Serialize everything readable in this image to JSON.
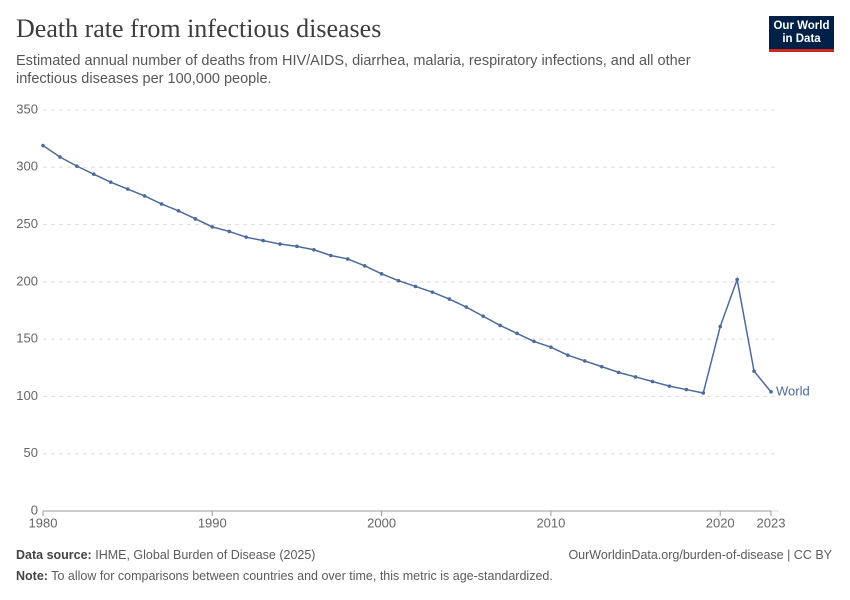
{
  "chart_data": {
    "type": "line",
    "title": "Death rate from infectious diseases",
    "subtitle": "Estimated annual number of deaths from HIV/AIDS, diarrhea, malaria, respiratory infections, and all other infectious diseases per 100,000 people.",
    "x": [
      1980,
      1981,
      1982,
      1983,
      1984,
      1985,
      1986,
      1987,
      1988,
      1989,
      1990,
      1991,
      1992,
      1993,
      1994,
      1995,
      1996,
      1997,
      1998,
      1999,
      2000,
      2001,
      2002,
      2003,
      2004,
      2005,
      2006,
      2007,
      2008,
      2009,
      2010,
      2011,
      2012,
      2013,
      2014,
      2015,
      2016,
      2017,
      2018,
      2019,
      2020,
      2021,
      2022,
      2023
    ],
    "series": [
      {
        "name": "World",
        "color": "#4c6a9c",
        "values": [
          319,
          309,
          301,
          294,
          287,
          281,
          275,
          268,
          262,
          255,
          248,
          244,
          239,
          236,
          233,
          231,
          228,
          223,
          220,
          214,
          207,
          201,
          196,
          191,
          185,
          178,
          170,
          162,
          155,
          148,
          143,
          136,
          131,
          126,
          121,
          117,
          113,
          109,
          106,
          103,
          161,
          202,
          122,
          104
        ]
      }
    ],
    "xlim": [
      1980,
      2023
    ],
    "xticks": [
      1980,
      1990,
      2000,
      2010,
      2020,
      2023
    ],
    "ylim": [
      0,
      350
    ],
    "yticks": [
      0,
      50,
      100,
      150,
      200,
      250,
      300,
      350
    ],
    "grid": true
  },
  "logo": [
    "Our World",
    "in Data"
  ],
  "footer": {
    "source_label": "Data source:",
    "source": "IHME, Global Burden of Disease (2025)",
    "url": "OurWorldinData.org/burden-of-disease | CC BY",
    "note_label": "Note:",
    "note": "To allow for comparisons between countries and over time, this metric is age-standardized."
  }
}
